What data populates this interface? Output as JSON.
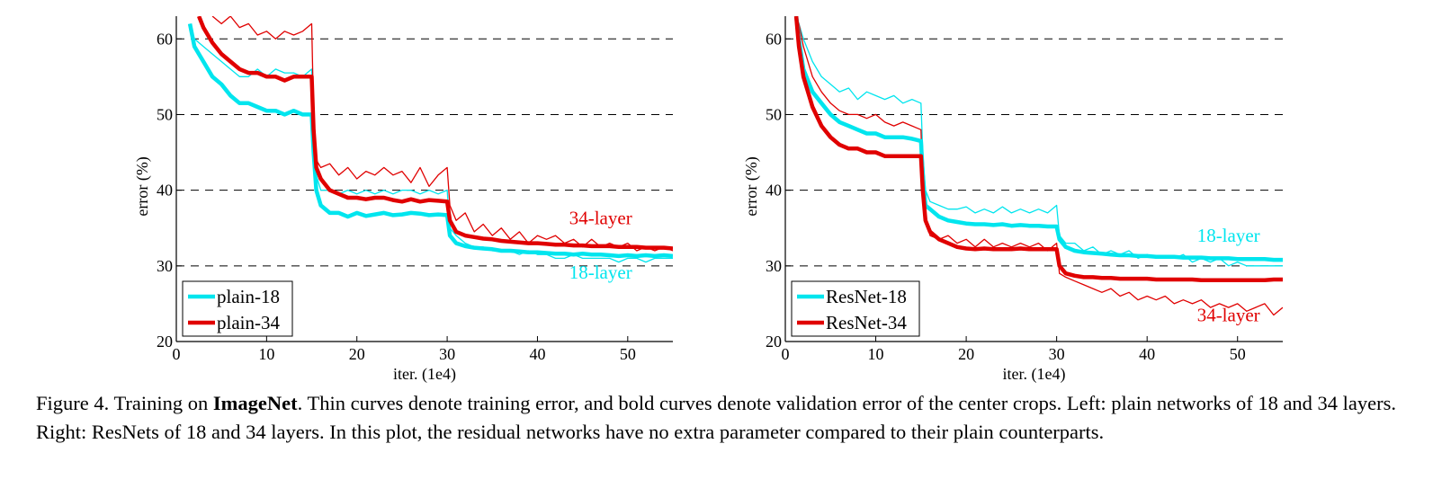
{
  "chart_data": [
    {
      "type": "line",
      "xlabel": "iter. (1e4)",
      "ylabel": "error (%)",
      "xlim": [
        0,
        55
      ],
      "ylim": [
        20,
        63
      ],
      "xticks": [
        0,
        10,
        20,
        30,
        40,
        50
      ],
      "yticks": [
        20,
        30,
        40,
        50,
        60
      ],
      "grid": "horizontal dashed",
      "legend_position": "bottom-left",
      "legend": [
        "plain-18",
        "plain-34"
      ],
      "annotations": [
        {
          "text": "34-layer",
          "x": 47,
          "y": 35.5,
          "color": "#e00000"
        },
        {
          "text": "18-layer",
          "x": 47,
          "y": 28.3,
          "color": "#00e5ee"
        }
      ],
      "series": [
        {
          "name": "plain-18",
          "color": "#00e5ee",
          "style": "bold",
          "x": [
            1.5,
            2,
            3,
            4,
            5,
            6,
            7,
            8,
            9,
            10,
            11,
            12,
            13,
            14,
            15,
            15.2,
            15.5,
            16,
            17,
            18,
            19,
            20,
            21,
            22,
            23,
            24,
            25,
            26,
            27,
            28,
            29,
            30,
            30.3,
            31,
            32,
            33,
            34,
            35,
            36,
            37,
            38,
            39,
            40,
            41,
            42,
            43,
            44,
            45,
            46,
            47,
            48,
            49,
            50,
            51,
            52,
            53,
            54,
            55
          ],
          "y": [
            62,
            59,
            57,
            55,
            54,
            52.5,
            51.5,
            51.5,
            51,
            50.5,
            50.5,
            50,
            50.5,
            50,
            50,
            45,
            40,
            38,
            37,
            37,
            36.5,
            37,
            36.6,
            36.8,
            37,
            36.7,
            36.8,
            37,
            36.9,
            36.7,
            36.8,
            36.7,
            34,
            33,
            32.6,
            32.4,
            32.3,
            32.2,
            32,
            32,
            31.9,
            31.8,
            31.8,
            31.7,
            31.6,
            31.6,
            31.5,
            31.6,
            31.5,
            31.5,
            31.4,
            31.3,
            31.4,
            31.3,
            31.4,
            31.3,
            31.4,
            31.3
          ]
        },
        {
          "name": "plain-34",
          "color": "#e00000",
          "style": "bold",
          "x": [
            2.5,
            3,
            4,
            5,
            6,
            7,
            8,
            9,
            10,
            11,
            12,
            13,
            14,
            15,
            15.2,
            15.5,
            16,
            17,
            18,
            19,
            20,
            21,
            22,
            23,
            24,
            25,
            26,
            27,
            28,
            29,
            30,
            30.3,
            31,
            32,
            33,
            34,
            35,
            36,
            37,
            38,
            39,
            40,
            41,
            42,
            43,
            44,
            45,
            46,
            47,
            48,
            49,
            50,
            51,
            52,
            53,
            54,
            55
          ],
          "y": [
            63,
            61.5,
            59.5,
            58,
            57,
            56,
            55.5,
            55.5,
            55,
            55,
            54.5,
            55,
            55,
            55,
            48,
            43,
            41.5,
            40,
            39.5,
            39,
            39,
            38.8,
            39,
            39,
            38.7,
            38.5,
            38.8,
            38.5,
            38.7,
            38.6,
            38.5,
            36,
            34.5,
            34,
            33.8,
            33.6,
            33.5,
            33.3,
            33.2,
            33.1,
            33,
            33,
            32.9,
            32.8,
            32.8,
            32.7,
            32.7,
            32.6,
            32.6,
            32.6,
            32.5,
            32.5,
            32.5,
            32.4,
            32.4,
            32.4,
            32.3
          ]
        },
        {
          "name": "plain-18 train",
          "color": "#00e5ee",
          "style": "thin",
          "x": [
            1.5,
            2,
            3,
            4,
            5,
            6,
            7,
            8,
            9,
            10,
            11,
            12,
            13,
            14,
            15,
            15.2,
            15.5,
            16,
            17,
            18,
            19,
            20,
            21,
            22,
            23,
            24,
            25,
            26,
            27,
            28,
            29,
            30,
            30.3,
            31,
            32,
            33,
            34,
            35,
            36,
            37,
            38,
            39,
            40,
            41,
            42,
            43,
            44,
            45,
            46,
            47,
            48,
            49,
            50,
            51,
            52,
            53,
            54,
            55
          ],
          "y": [
            62,
            60,
            59,
            58,
            57,
            56,
            55,
            55,
            56,
            55,
            56,
            55.5,
            55.5,
            55,
            56,
            48,
            42,
            40,
            40,
            39.5,
            40,
            39.5,
            40,
            39.5,
            40,
            39.5,
            40,
            40,
            39.5,
            40,
            39.5,
            40,
            35,
            34,
            33,
            32.5,
            32.5,
            32,
            32,
            32,
            31.5,
            32,
            31.5,
            31.5,
            31,
            31,
            31.5,
            31,
            31,
            31,
            31,
            30.5,
            31,
            31,
            30.5,
            31,
            31,
            31
          ]
        },
        {
          "name": "plain-34 train",
          "color": "#e00000",
          "style": "thin",
          "x": [
            4,
            5,
            6,
            7,
            8,
            9,
            10,
            11,
            12,
            13,
            14,
            15,
            15.2,
            15.5,
            16,
            17,
            18,
            19,
            20,
            21,
            22,
            23,
            24,
            25,
            26,
            27,
            28,
            29,
            30,
            30.3,
            31,
            32,
            33,
            34,
            35,
            36,
            37,
            38,
            39,
            40,
            41,
            42,
            43,
            44,
            45,
            46,
            47,
            48,
            49,
            50,
            51,
            52,
            53,
            54,
            55
          ],
          "y": [
            63,
            62,
            63,
            61.5,
            62,
            60.5,
            61,
            60,
            61,
            60.5,
            61,
            62,
            50,
            44,
            43,
            43.5,
            42,
            43,
            41.5,
            42.5,
            42,
            43,
            42,
            42.5,
            41,
            43,
            40.5,
            42,
            43,
            38,
            36,
            37,
            34.5,
            35.5,
            34,
            35,
            33.5,
            34.5,
            33,
            34,
            33.5,
            34,
            33,
            33.5,
            32.5,
            33.5,
            32.5,
            33,
            32.5,
            33,
            32,
            32.5,
            32,
            32.5,
            32
          ]
        }
      ]
    },
    {
      "type": "line",
      "xlabel": "iter. (1e4)",
      "ylabel": "error (%)",
      "xlim": [
        0,
        55
      ],
      "ylim": [
        20,
        63
      ],
      "xticks": [
        0,
        10,
        20,
        30,
        40,
        50
      ],
      "yticks": [
        20,
        30,
        40,
        50,
        60
      ],
      "grid": "horizontal dashed",
      "legend_position": "bottom-left",
      "legend": [
        "ResNet-18",
        "ResNet-34"
      ],
      "annotations": [
        {
          "text": "18-layer",
          "x": 49,
          "y": 33.2,
          "color": "#00e5ee"
        },
        {
          "text": "34-layer",
          "x": 49,
          "y": 22.7,
          "color": "#e00000"
        }
      ],
      "series": [
        {
          "name": "ResNet-18",
          "color": "#00e5ee",
          "style": "bold",
          "x": [
            1.2,
            1.5,
            2,
            3,
            4,
            5,
            6,
            7,
            8,
            9,
            10,
            11,
            12,
            13,
            14,
            15,
            15.2,
            15.5,
            16,
            17,
            18,
            19,
            20,
            21,
            22,
            23,
            24,
            25,
            26,
            27,
            28,
            29,
            30,
            30.3,
            31,
            32,
            33,
            34,
            35,
            36,
            37,
            38,
            39,
            40,
            41,
            42,
            43,
            44,
            45,
            46,
            47,
            48,
            49,
            50,
            51,
            52,
            53,
            54,
            55
          ],
          "y": [
            63,
            60,
            56,
            53,
            51.5,
            50,
            49,
            48.5,
            48,
            47.5,
            47.5,
            47,
            47,
            47,
            46.8,
            46.5,
            42,
            38,
            37.5,
            36.5,
            36,
            35.8,
            35.6,
            35.5,
            35.5,
            35.4,
            35.5,
            35.3,
            35.4,
            35.3,
            35.3,
            35.2,
            35.2,
            33.5,
            32.5,
            32,
            31.8,
            31.7,
            31.6,
            31.5,
            31.4,
            31.4,
            31.3,
            31.3,
            31.2,
            31.2,
            31.2,
            31.1,
            31.1,
            31.1,
            31,
            31,
            31,
            30.9,
            30.9,
            30.9,
            30.9,
            30.8,
            30.8
          ]
        },
        {
          "name": "ResNet-34",
          "color": "#e00000",
          "style": "bold",
          "x": [
            1.2,
            1.5,
            2,
            3,
            4,
            5,
            6,
            7,
            8,
            9,
            10,
            11,
            12,
            13,
            14,
            15,
            15.2,
            15.5,
            16,
            17,
            18,
            19,
            20,
            21,
            22,
            23,
            24,
            25,
            26,
            27,
            28,
            29,
            30,
            30.3,
            31,
            32,
            33,
            34,
            35,
            36,
            37,
            38,
            39,
            40,
            41,
            42,
            43,
            44,
            45,
            46,
            47,
            48,
            49,
            50,
            51,
            52,
            53,
            54,
            55
          ],
          "y": [
            63,
            59,
            55,
            51,
            48.5,
            47,
            46,
            45.5,
            45.5,
            45,
            45,
            44.5,
            44.5,
            44.5,
            44.5,
            44.5,
            40,
            36,
            34.5,
            33.5,
            33,
            32.5,
            32.3,
            32.2,
            32.3,
            32.2,
            32.2,
            32.2,
            32.3,
            32.2,
            32.2,
            32.2,
            32.2,
            30,
            29,
            28.7,
            28.5,
            28.5,
            28.4,
            28.4,
            28.3,
            28.3,
            28.3,
            28.3,
            28.2,
            28.2,
            28.2,
            28.2,
            28.2,
            28.1,
            28.1,
            28.1,
            28.1,
            28.1,
            28.1,
            28.1,
            28.1,
            28.2,
            28.2
          ]
        },
        {
          "name": "ResNet-18 train",
          "color": "#00e5ee",
          "style": "thin",
          "x": [
            1.2,
            1.5,
            2,
            3,
            4,
            5,
            6,
            7,
            8,
            9,
            10,
            11,
            12,
            13,
            14,
            15,
            15.2,
            15.5,
            16,
            17,
            18,
            19,
            20,
            21,
            22,
            23,
            24,
            25,
            26,
            27,
            28,
            29,
            30,
            30.3,
            31,
            32,
            33,
            34,
            35,
            36,
            37,
            38,
            39,
            40,
            41,
            42,
            43,
            44,
            45,
            46,
            47,
            48,
            49,
            50,
            51,
            52,
            53,
            54,
            55
          ],
          "y": [
            63,
            62,
            60,
            57,
            55,
            54,
            53,
            53.5,
            52,
            53,
            52.5,
            52,
            52.5,
            51.5,
            52,
            51.5,
            45,
            40,
            38.5,
            38,
            37.5,
            37.5,
            37.8,
            37,
            37.5,
            37,
            37.8,
            37,
            37.5,
            37,
            37.5,
            37,
            38,
            34,
            33,
            33,
            32,
            32.5,
            31.5,
            32,
            31.5,
            32,
            31,
            31.5,
            31,
            31,
            31,
            31.5,
            30.5,
            31,
            30.5,
            31,
            30,
            30.5,
            30,
            30,
            30,
            30,
            30
          ]
        },
        {
          "name": "ResNet-34 train",
          "color": "#e00000",
          "style": "thin",
          "x": [
            1.2,
            1.5,
            2,
            3,
            4,
            5,
            6,
            7,
            8,
            9,
            10,
            11,
            12,
            13,
            14,
            15,
            15.2,
            15.5,
            16,
            17,
            18,
            19,
            20,
            21,
            22,
            23,
            24,
            25,
            26,
            27,
            28,
            29,
            30,
            30.3,
            31,
            32,
            33,
            34,
            35,
            36,
            37,
            38,
            39,
            40,
            41,
            42,
            43,
            44,
            45,
            46,
            47,
            48,
            49,
            50,
            51,
            52,
            53,
            54,
            55
          ],
          "y": [
            63,
            62,
            59,
            55,
            53,
            51.5,
            50.5,
            50,
            50,
            49.5,
            50,
            49,
            48.5,
            49,
            48.5,
            48,
            40,
            36,
            34,
            33.5,
            34,
            33,
            33.5,
            32.5,
            33.5,
            32.5,
            33,
            32.5,
            33,
            32.5,
            33,
            32,
            33,
            29,
            28.5,
            28,
            27.5,
            27,
            26.5,
            27,
            26,
            26.5,
            25.5,
            26,
            25.5,
            26,
            25,
            25.5,
            25,
            25.5,
            24.5,
            25,
            24.5,
            25,
            24,
            24.5,
            25,
            23.5,
            24.5
          ]
        }
      ]
    }
  ],
  "caption": {
    "prefix": "Figure 4. Training on ",
    "bold": "ImageNet",
    "rest": ". Thin curves denote training error, and bold curves denote validation error of the center crops. Left: plain networks of 18 and 34 layers. Right: ResNets of 18 and 34 layers. In this plot, the residual networks have no extra parameter compared to their plain counterparts."
  }
}
